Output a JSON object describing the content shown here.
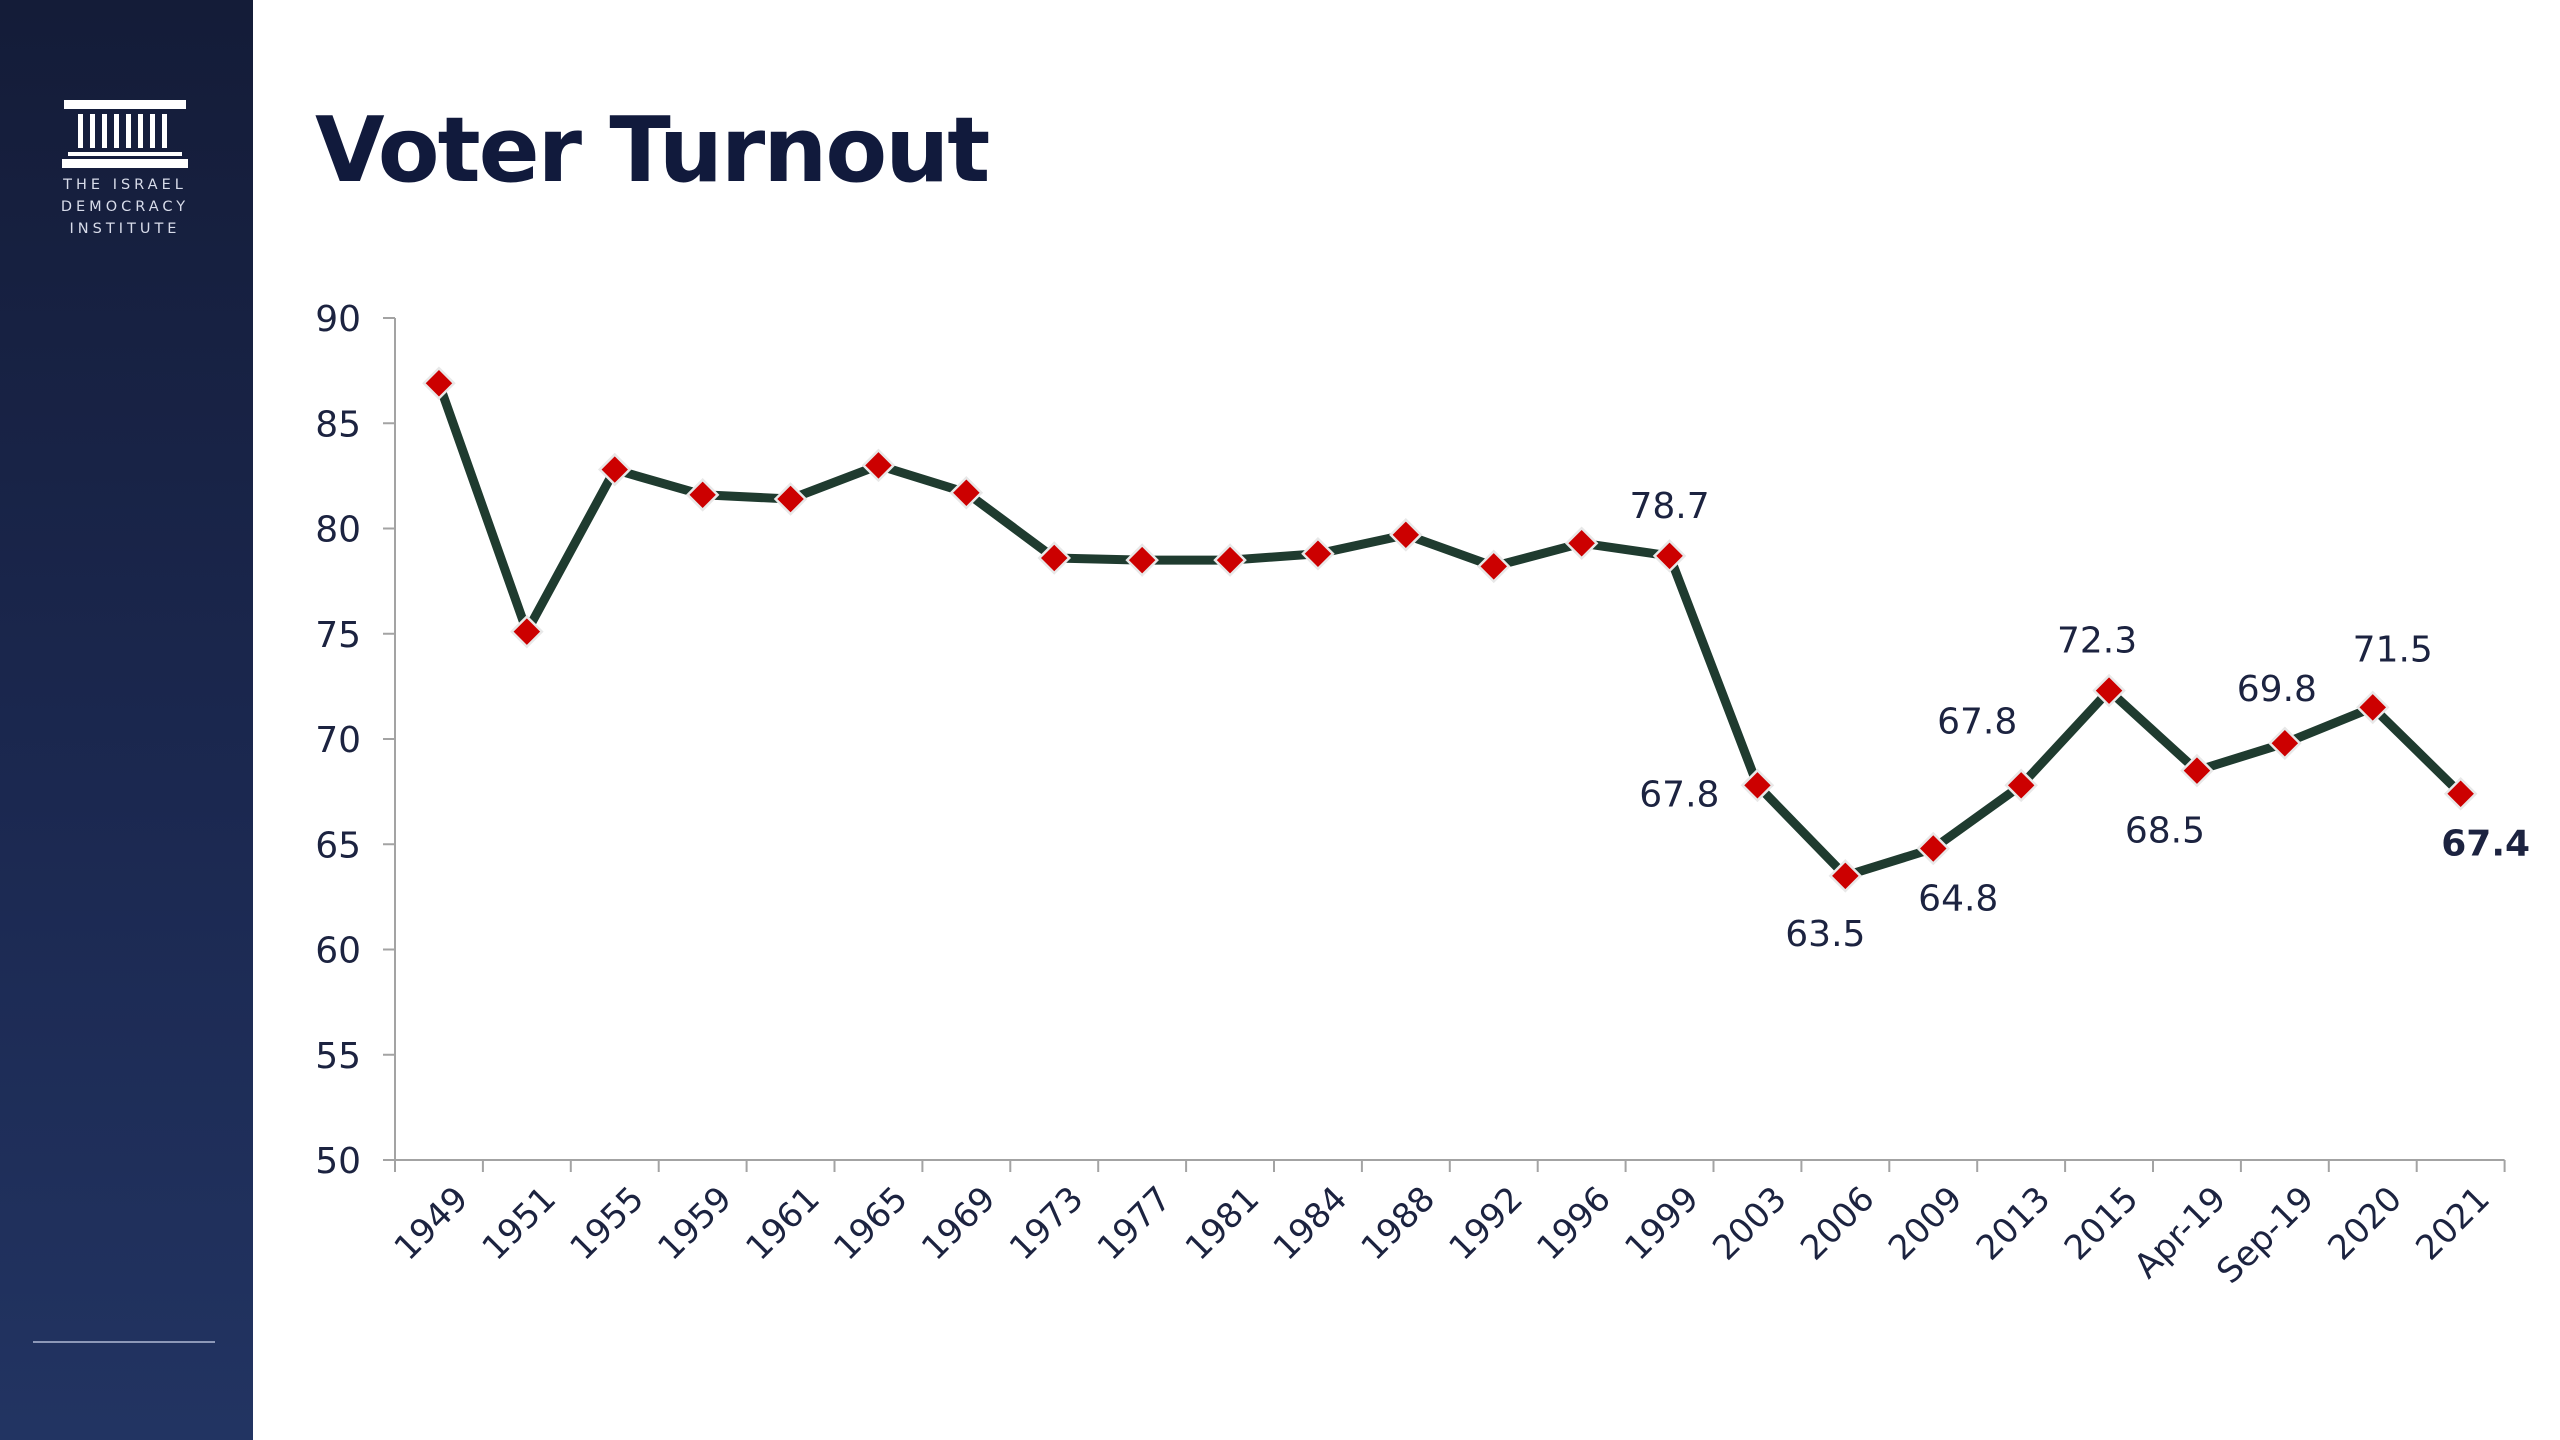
{
  "sidebar": {
    "logo": {
      "line1": "THE ISRAEL",
      "line2": "DEMOCRACY",
      "line3": "INSTITUTE"
    }
  },
  "page": {
    "title": "Voter Turnout"
  },
  "colors": {
    "sidebar": "#1b2850",
    "title": "#111a3c",
    "line": "#1f3b2f",
    "marker": "#cc0000"
  },
  "chart_data": {
    "type": "line",
    "title": "Voter Turnout",
    "xlabel": "",
    "ylabel": "",
    "ylim": [
      50,
      90
    ],
    "yticks": [
      50,
      55,
      60,
      65,
      70,
      75,
      80,
      85,
      90
    ],
    "grid": false,
    "legend": "none",
    "categories": [
      "1949",
      "1951",
      "1955",
      "1959",
      "1961",
      "1965",
      "1969",
      "1973",
      "1977",
      "1981",
      "1984",
      "1988",
      "1992",
      "1996",
      "1999",
      "2003",
      "2006",
      "2009",
      "2013",
      "2015",
      "Apr-19",
      "Sep-19",
      "2020",
      "2021"
    ],
    "series": [
      {
        "values": [
          86.9,
          75.1,
          82.8,
          81.6,
          81.4,
          83.0,
          81.7,
          78.6,
          78.5,
          78.5,
          78.8,
          79.7,
          78.2,
          79.3,
          78.7,
          67.8,
          63.5,
          64.8,
          67.8,
          72.3,
          68.5,
          69.8,
          71.5,
          67.4
        ]
      }
    ],
    "data_labels": [
      {
        "category": "1999",
        "text": "78.7",
        "pos": "above"
      },
      {
        "category": "2003",
        "text": "67.8",
        "pos": "left"
      },
      {
        "category": "2006",
        "text": "63.5",
        "pos": "below"
      },
      {
        "category": "2009",
        "text": "64.8",
        "pos": "below"
      },
      {
        "category": "2013",
        "text": "67.8",
        "pos": "above"
      },
      {
        "category": "2015",
        "text": "72.3",
        "pos": "above"
      },
      {
        "category": "Apr-19",
        "text": "68.5",
        "pos": "below"
      },
      {
        "category": "Sep-19",
        "text": "69.8",
        "pos": "above"
      },
      {
        "category": "2020",
        "text": "71.5",
        "pos": "above"
      },
      {
        "category": "2021",
        "text": "67.4",
        "pos": "below-right",
        "bold": true
      }
    ]
  }
}
